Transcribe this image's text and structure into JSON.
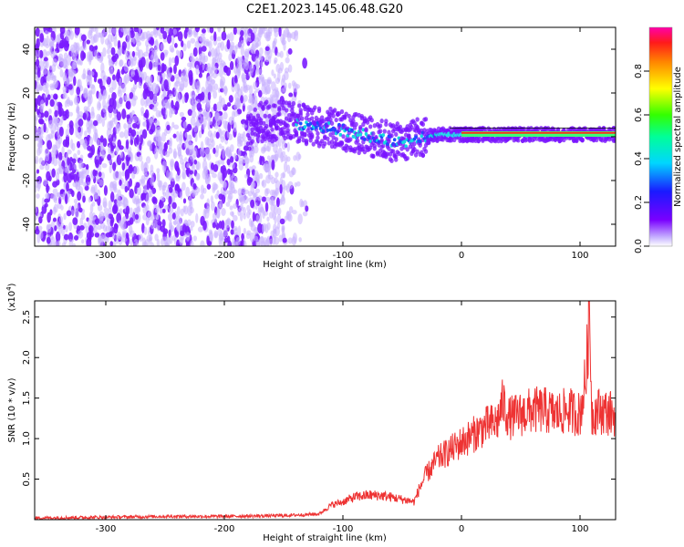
{
  "chart_data": [
    {
      "type": "heatmap",
      "title": "C2E1.2023.145.06.48.G20",
      "xlabel": "Height of straight line (km)",
      "ylabel": "Frequency (Hz)",
      "xlim": [
        -360,
        130
      ],
      "ylim": [
        -50,
        50
      ],
      "xticks": [
        -300,
        -200,
        -100,
        0,
        100
      ],
      "xtick_labels": [
        "-300",
        "-200",
        "-100",
        "0",
        "100"
      ],
      "yticks": [
        -40,
        -20,
        0,
        20,
        40
      ],
      "ytick_labels": [
        "-40",
        "-20",
        "0",
        "20",
        "40"
      ],
      "colorbar": {
        "label": "Normalized spectral amplitude",
        "ticks": [
          0.0,
          0.2,
          0.4,
          0.6,
          0.8
        ],
        "tick_labels": [
          "0.0",
          "0.2",
          "0.4",
          "0.6",
          "0.8"
        ],
        "range": [
          0,
          1
        ]
      },
      "ridge": {
        "x": [
          -175,
          -150,
          -125,
          -100,
          -75,
          -55,
          -40,
          -20,
          0,
          40,
          100,
          130
        ],
        "y": [
          7,
          7,
          5,
          3,
          0,
          -3,
          -1,
          1,
          1,
          1,
          1,
          1
        ]
      },
      "noise_region_x": [
        -360,
        -130
      ],
      "grid": false
    },
    {
      "type": "line",
      "xlabel": "Height of straight line (km)",
      "ylabel": "SNR (10 * v/v)",
      "y_multiplier_label": "(x10",
      "y_multiplier_exp": "4",
      "y_multiplier_close": ")",
      "xlim": [
        -360,
        130
      ],
      "ylim": [
        0,
        2.7
      ],
      "xticks": [
        -300,
        -200,
        -100,
        0,
        100
      ],
      "xtick_labels": [
        "-300",
        "-200",
        "-100",
        "0",
        "100"
      ],
      "yticks": [
        0.5,
        1.0,
        1.5,
        2.0,
        2.5
      ],
      "ytick_labels": [
        "0.5",
        "1.0",
        "1.5",
        "2.0",
        "2.5"
      ],
      "series": [
        {
          "color": "#ee3333",
          "x": [
            -360,
            -300,
            -250,
            -200,
            -150,
            -120,
            -110,
            -100,
            -90,
            -80,
            -70,
            -60,
            -50,
            -40,
            -35,
            -30,
            -20,
            -10,
            0,
            10,
            20,
            30,
            35,
            40,
            50,
            60,
            70,
            80,
            90,
            100,
            105,
            108,
            110,
            115,
            130
          ],
          "y": [
            0.02,
            0.03,
            0.04,
            0.04,
            0.05,
            0.07,
            0.18,
            0.22,
            0.28,
            0.3,
            0.3,
            0.28,
            0.25,
            0.22,
            0.4,
            0.55,
            0.75,
            0.85,
            0.95,
            1.05,
            1.15,
            1.2,
            1.45,
            1.25,
            1.3,
            1.35,
            1.35,
            1.3,
            1.35,
            1.3,
            1.75,
            2.6,
            1.3,
            1.35,
            1.3
          ]
        }
      ],
      "grid": false
    }
  ]
}
